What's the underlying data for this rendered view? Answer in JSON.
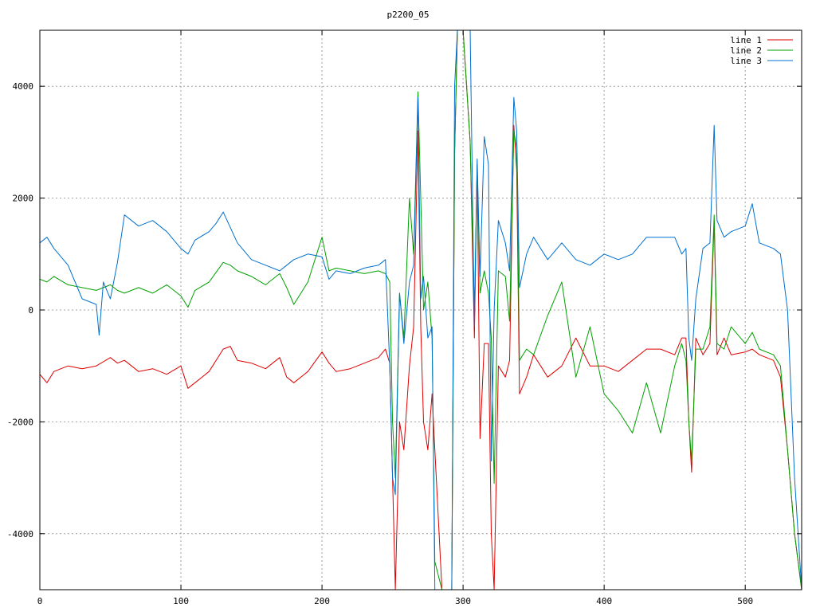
{
  "chart_data": {
    "type": "line",
    "title": "p2200_05",
    "xlabel": "",
    "ylabel": "",
    "xlim": [
      0,
      540
    ],
    "ylim": [
      -5000,
      5000
    ],
    "x_ticks": [
      0,
      100,
      200,
      300,
      400,
      500
    ],
    "y_ticks": [
      -4000,
      -2000,
      0,
      2000,
      4000
    ],
    "x_tick_labels": [
      "0",
      "100",
      "200",
      "300",
      "400",
      "500"
    ],
    "y_tick_labels": [
      "-4000",
      "-2000",
      "0",
      "2000",
      "4000"
    ],
    "grid": true,
    "legend_position": "top-right",
    "series": [
      {
        "name": "line 1",
        "color": "#e00000",
        "x": [
          0,
          5,
          10,
          20,
          30,
          40,
          50,
          55,
          60,
          70,
          80,
          90,
          100,
          105,
          110,
          120,
          130,
          135,
          140,
          150,
          160,
          170,
          175,
          180,
          190,
          200,
          205,
          210,
          220,
          230,
          240,
          245,
          248,
          250,
          252,
          255,
          258,
          262,
          265,
          268,
          270,
          272,
          275,
          278,
          280,
          285,
          290,
          292,
          294,
          296,
          300,
          305,
          308,
          310,
          312,
          315,
          318,
          320,
          322,
          325,
          330,
          333,
          336,
          338,
          340,
          345,
          350,
          360,
          370,
          380,
          390,
          400,
          410,
          420,
          430,
          440,
          450,
          455,
          458,
          460,
          462,
          465,
          470,
          475,
          478,
          480,
          485,
          490,
          500,
          505,
          510,
          520,
          525,
          530,
          535,
          540
        ],
        "values": [
          -1150,
          -1300,
          -1100,
          -1000,
          -1050,
          -1000,
          -850,
          -950,
          -900,
          -1100,
          -1050,
          -1150,
          -1000,
          -1400,
          -1300,
          -1100,
          -700,
          -650,
          -900,
          -950,
          -1050,
          -850,
          -1200,
          -1300,
          -1100,
          -750,
          -950,
          -1100,
          -1050,
          -950,
          -850,
          -700,
          -950,
          -3000,
          -5000,
          -2000,
          -2500,
          -1000,
          -300,
          3200,
          -300,
          -2000,
          -2500,
          -1500,
          -2500,
          -5000,
          -5000,
          -5000,
          2800,
          5000,
          5000,
          3000,
          -500,
          2600,
          -2300,
          -600,
          -600,
          -4000,
          -5000,
          -1000,
          -1200,
          -900,
          3300,
          2500,
          -1500,
          -1200,
          -800,
          -1200,
          -1000,
          -500,
          -1000,
          -1000,
          -1100,
          -900,
          -700,
          -700,
          -800,
          -500,
          -500,
          -2000,
          -2900,
          -500,
          -800,
          -600,
          1600,
          -800,
          -500,
          -800,
          -750,
          -700,
          -800,
          -900,
          -1200,
          -2500,
          -4000,
          -5000
        ]
      },
      {
        "name": "line 2",
        "color": "#00a000",
        "x": [
          0,
          5,
          10,
          20,
          30,
          40,
          50,
          55,
          60,
          70,
          80,
          90,
          100,
          105,
          110,
          120,
          130,
          135,
          140,
          150,
          160,
          170,
          175,
          180,
          190,
          200,
          205,
          210,
          220,
          230,
          240,
          245,
          248,
          250,
          252,
          255,
          258,
          262,
          265,
          268,
          270,
          272,
          275,
          278,
          280,
          285,
          290,
          292,
          294,
          296,
          300,
          305,
          308,
          310,
          312,
          315,
          318,
          320,
          322,
          325,
          330,
          333,
          336,
          338,
          340,
          345,
          350,
          360,
          370,
          380,
          390,
          400,
          410,
          420,
          430,
          440,
          450,
          455,
          458,
          460,
          462,
          465,
          470,
          475,
          478,
          480,
          485,
          490,
          500,
          505,
          510,
          520,
          525,
          530,
          535,
          540
        ],
        "values": [
          550,
          500,
          600,
          450,
          400,
          350,
          450,
          350,
          300,
          400,
          300,
          450,
          250,
          50,
          350,
          500,
          850,
          800,
          700,
          600,
          450,
          650,
          400,
          100,
          500,
          1300,
          700,
          750,
          700,
          650,
          700,
          650,
          500,
          -2000,
          -3000,
          300,
          -500,
          2000,
          1000,
          3900,
          2000,
          0,
          500,
          -500,
          -4500,
          -5000,
          -5000,
          -5000,
          2800,
          5000,
          5000,
          3000,
          0,
          2600,
          300,
          700,
          300,
          -500,
          -3100,
          700,
          600,
          -200,
          3200,
          2900,
          -900,
          -700,
          -800,
          -100,
          500,
          -1200,
          -300,
          -1500,
          -1800,
          -2200,
          -1300,
          -2200,
          -1000,
          -600,
          -900,
          -2000,
          -2700,
          -700,
          -700,
          -300,
          1700,
          -600,
          -700,
          -300,
          -600,
          -400,
          -700,
          -800,
          -1000,
          -2500,
          -4000,
          -5000
        ]
      },
      {
        "name": "line 3",
        "color": "#0070d0",
        "x": [
          0,
          5,
          10,
          20,
          30,
          40,
          42,
          45,
          50,
          55,
          60,
          70,
          80,
          90,
          100,
          105,
          110,
          120,
          125,
          130,
          140,
          150,
          160,
          170,
          175,
          180,
          190,
          200,
          205,
          210,
          220,
          230,
          240,
          245,
          248,
          250,
          252,
          255,
          258,
          262,
          265,
          268,
          270,
          272,
          275,
          278,
          280,
          285,
          290,
          292,
          294,
          296,
          300,
          305,
          308,
          310,
          312,
          315,
          318,
          320,
          322,
          325,
          330,
          333,
          336,
          338,
          340,
          345,
          350,
          360,
          370,
          380,
          390,
          400,
          410,
          420,
          430,
          440,
          450,
          455,
          458,
          460,
          462,
          465,
          470,
          475,
          478,
          480,
          485,
          490,
          500,
          505,
          510,
          520,
          525,
          530,
          535,
          540
        ],
        "values": [
          1200,
          1300,
          1100,
          800,
          200,
          100,
          -450,
          500,
          200,
          850,
          1700,
          1500,
          1600,
          1400,
          1100,
          1000,
          1250,
          1400,
          1550,
          1750,
          1200,
          900,
          800,
          700,
          800,
          900,
          1000,
          950,
          550,
          700,
          650,
          750,
          800,
          900,
          -1000,
          -3000,
          -3300,
          300,
          -600,
          500,
          800,
          3800,
          200,
          600,
          -500,
          -300,
          -5000,
          -5000,
          -5000,
          -5000,
          4000,
          5000,
          5000,
          5000,
          -300,
          2700,
          600,
          3100,
          2600,
          -2700,
          0,
          1600,
          1200,
          700,
          3800,
          3200,
          400,
          1000,
          1300,
          900,
          1200,
          900,
          800,
          1000,
          900,
          1000,
          1300,
          1300,
          1300,
          1000,
          1100,
          -500,
          -900,
          200,
          1100,
          1200,
          3300,
          1600,
          1300,
          1400,
          1500,
          1900,
          1200,
          1100,
          1000,
          0,
          -3000,
          -5000
        ]
      }
    ]
  }
}
